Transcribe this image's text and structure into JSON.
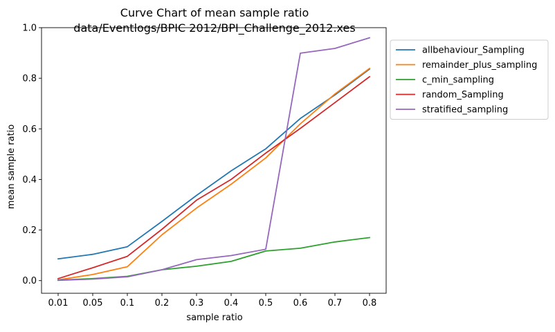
{
  "chart_data": {
    "type": "line",
    "title_line1": "Curve Chart of mean sample ratio",
    "title_line2": "data/Eventlogs/BPIC 2012/BPI_Challenge_2012.xes",
    "xlabel": "sample ratio",
    "ylabel": "mean sample ratio",
    "categories": [
      "0.01",
      "0.05",
      "0.1",
      "0.2",
      "0.3",
      "0.4",
      "0.5",
      "0.6",
      "0.7",
      "0.8"
    ],
    "ylim": [
      -0.05,
      1.0
    ],
    "yticks": [
      "0.0",
      "0.2",
      "0.4",
      "0.6",
      "0.8",
      "1.0"
    ],
    "grid": false,
    "legend_position": "outside-right",
    "series": [
      {
        "name": "allbehaviour_Sampling",
        "color": "#1f77b4",
        "values": [
          0.086,
          0.104,
          0.134,
          0.234,
          0.337,
          0.434,
          0.521,
          0.641,
          0.734,
          0.836
        ]
      },
      {
        "name": "remainder_plus_sampling",
        "color": "#ff7f0e",
        "values": [
          0.003,
          0.024,
          0.055,
          0.181,
          0.287,
          0.381,
          0.485,
          0.62,
          0.738,
          0.839
        ]
      },
      {
        "name": "c_min_sampling",
        "color": "#2ca02c",
        "values": [
          0.002,
          0.008,
          0.017,
          0.043,
          0.057,
          0.076,
          0.117,
          0.128,
          0.153,
          0.17
        ]
      },
      {
        "name": "random_Sampling",
        "color": "#d62728",
        "values": [
          0.008,
          0.051,
          0.096,
          0.203,
          0.318,
          0.4,
          0.504,
          0.602,
          0.704,
          0.806
        ]
      },
      {
        "name": "stratified_sampling",
        "color": "#9467bd",
        "values": [
          0.001,
          0.006,
          0.015,
          0.043,
          0.083,
          0.099,
          0.124,
          0.899,
          0.918,
          0.96
        ]
      }
    ]
  }
}
